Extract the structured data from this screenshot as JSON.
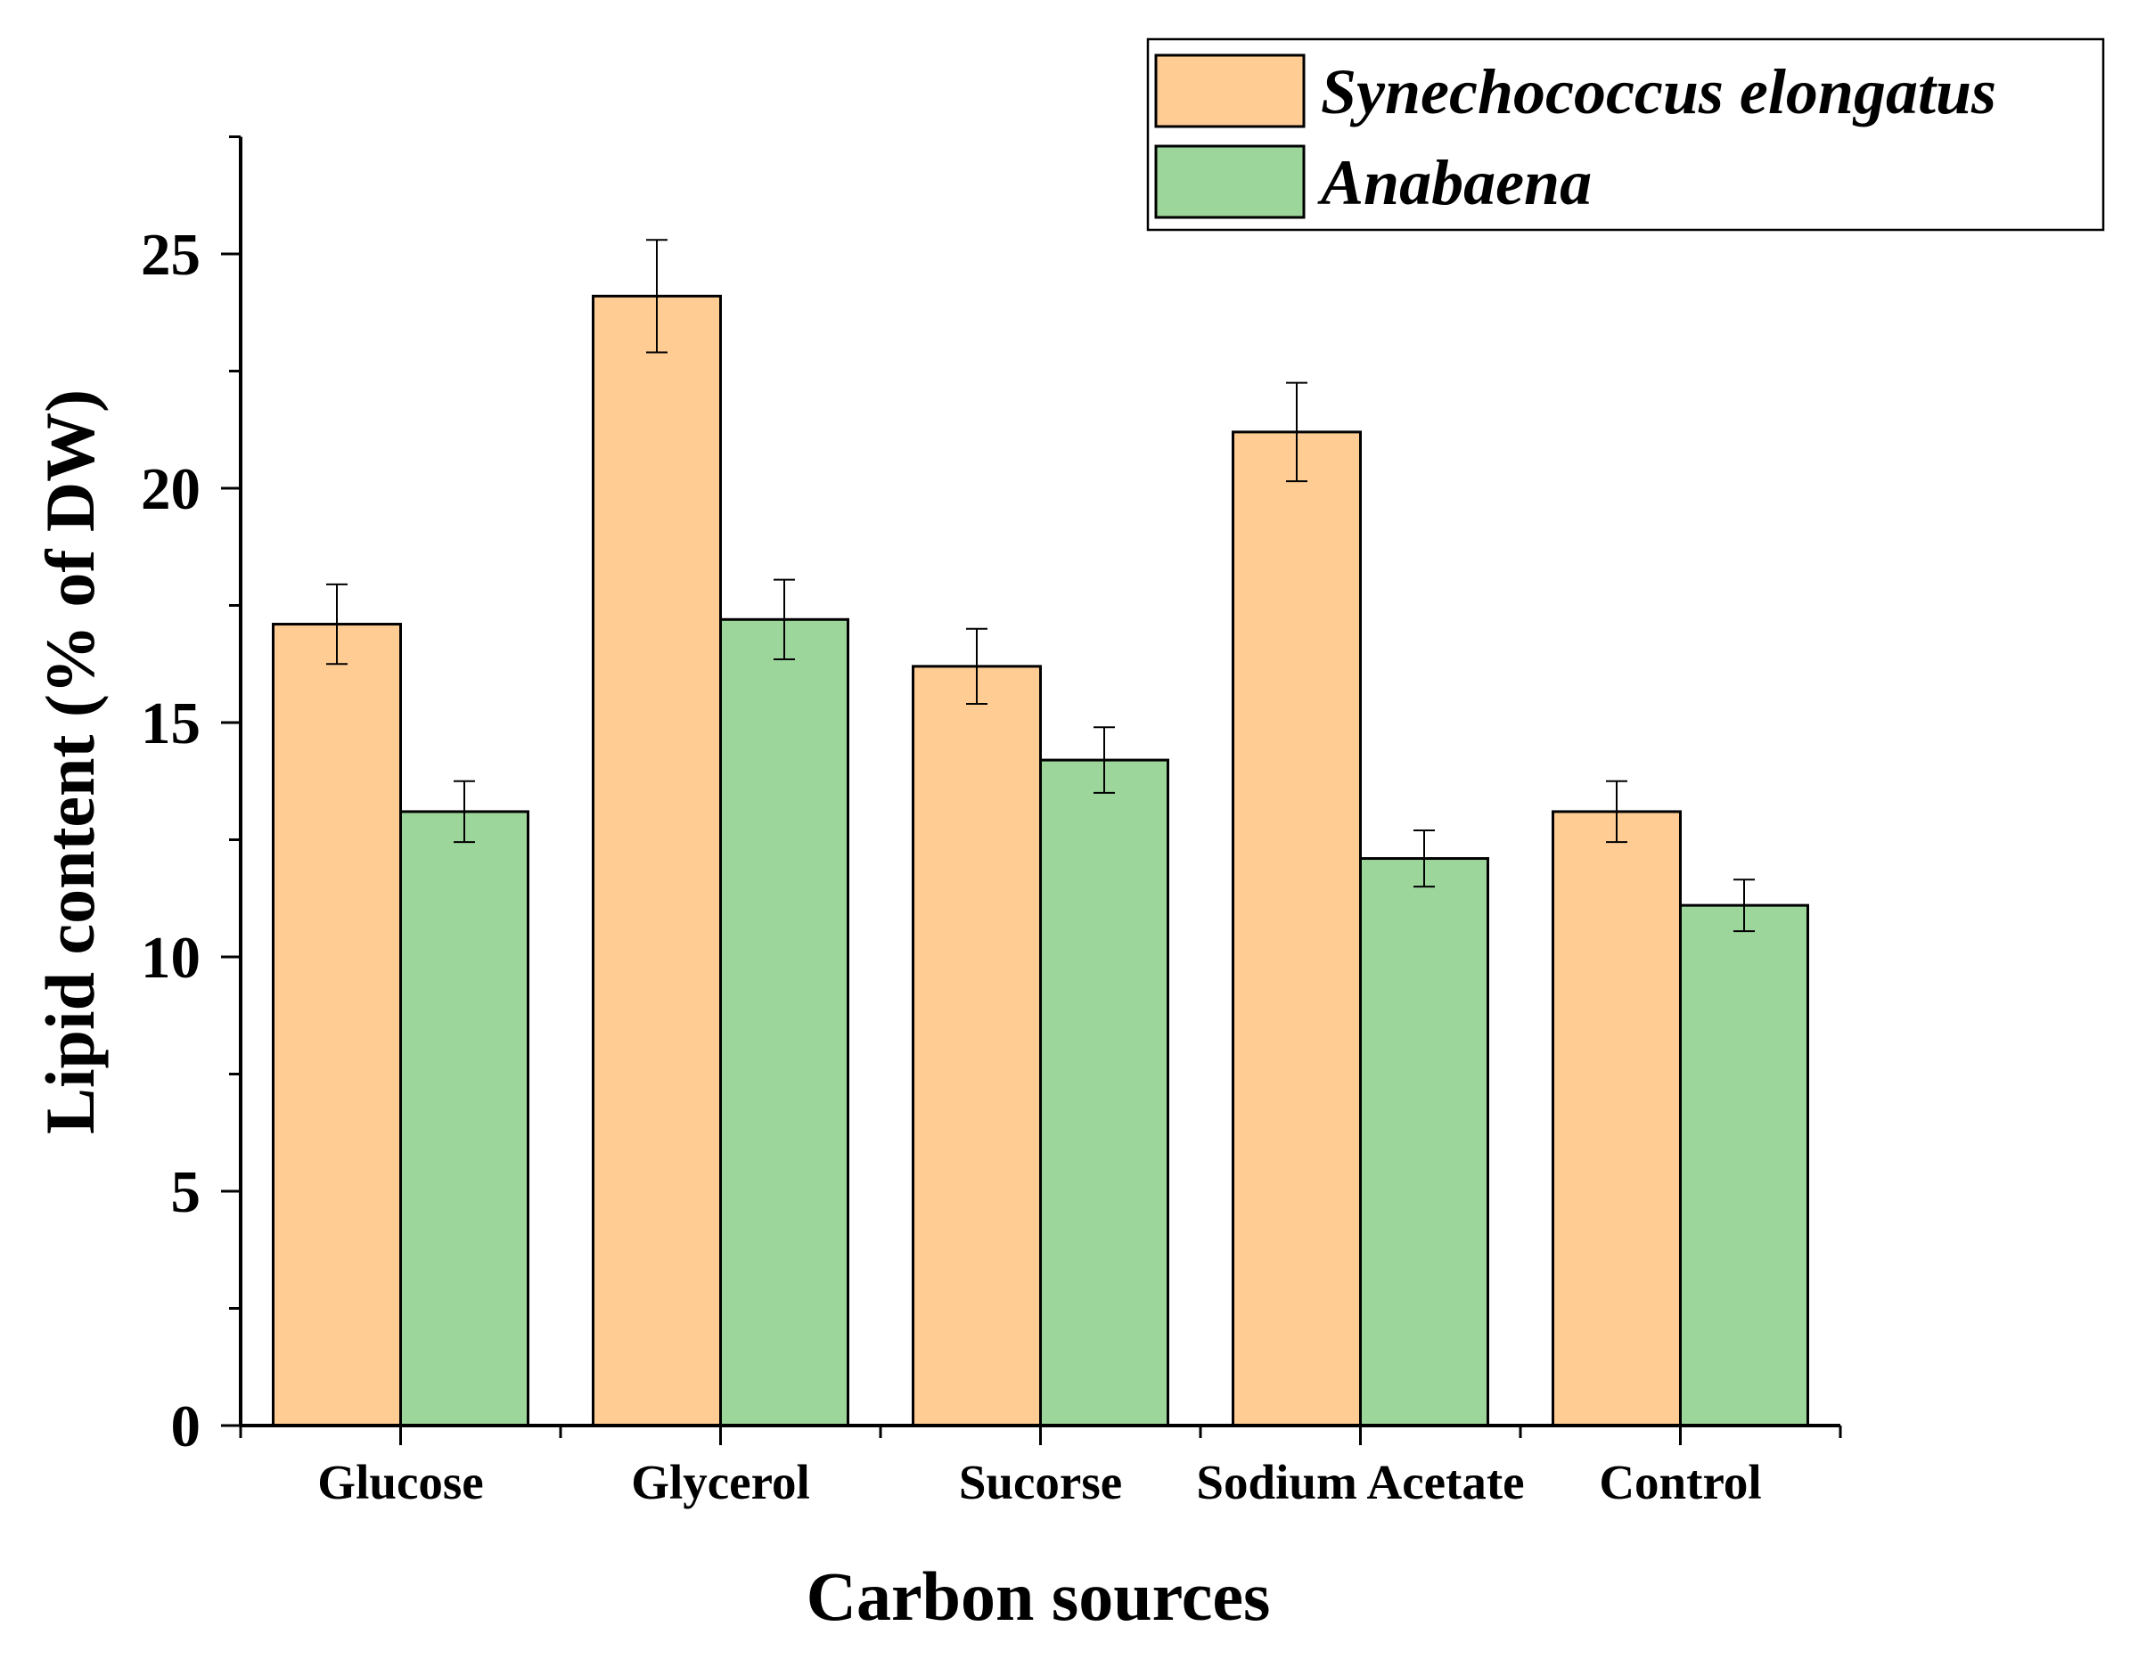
{
  "chart_data": {
    "type": "bar",
    "title": "",
    "xlabel": "Carbon sources",
    "ylabel": "Lipid content (% of DW)",
    "ylim": [
      0,
      27.5
    ],
    "yticks": [
      0,
      5,
      10,
      15,
      20,
      25
    ],
    "ytick_labels": [
      "0",
      "5",
      "10",
      "15",
      "20",
      "25"
    ],
    "categories": [
      "Glucose",
      "Glycerol",
      "Sucorse",
      "Sodium Acetate",
      "Control"
    ],
    "series": [
      {
        "name": "Synechococcus elongatus",
        "color": "#FFCC94",
        "values": [
          17.1,
          24.1,
          16.2,
          21.2,
          13.1
        ],
        "errors": [
          0.85,
          1.2,
          0.8,
          1.05,
          0.65
        ]
      },
      {
        "name": "Anabaena",
        "color": "#9DD69B",
        "values": [
          13.1,
          17.2,
          14.2,
          12.1,
          11.1
        ],
        "errors": [
          0.65,
          0.85,
          0.7,
          0.6,
          0.55
        ]
      }
    ],
    "legend_position": "top-right",
    "grid": false
  }
}
